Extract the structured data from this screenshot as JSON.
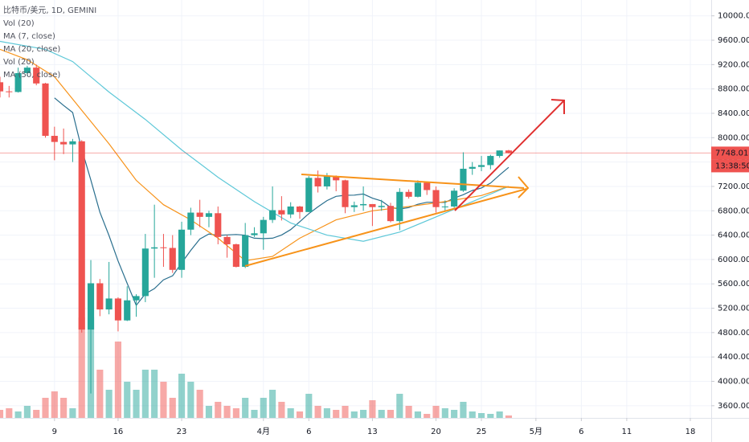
{
  "chart_data": {
    "type": "candlestick",
    "title": "比特币/美元, 1D, GEMINI",
    "legend": [
      "Vol (20)",
      "MA (7, close)",
      "MA (20, close)",
      "Vol (20)",
      "MA (50, close)"
    ],
    "x": [
      3,
      4,
      5,
      6,
      7,
      8,
      9,
      10,
      11,
      12,
      13,
      14,
      15,
      16,
      17,
      18,
      19,
      20,
      21,
      22,
      23,
      24,
      25,
      26,
      27,
      28,
      29,
      30,
      31,
      32,
      33,
      34,
      35,
      36,
      37,
      38,
      39,
      40,
      41,
      42,
      43,
      44,
      45,
      46,
      47,
      48,
      49,
      50,
      51,
      52,
      53,
      54,
      55,
      56,
      57,
      58,
      59
    ],
    "open": [
      8910,
      8760,
      8750,
      9060,
      9150,
      8890,
      8030,
      7930,
      7890,
      7940,
      4850,
      5610,
      5180,
      5360,
      5000,
      5330,
      5400,
      6180,
      6200,
      6190,
      5830,
      6490,
      6770,
      6700,
      6760,
      6370,
      6250,
      5880,
      6400,
      6430,
      6650,
      6810,
      6740,
      6870,
      6780,
      7340,
      7200,
      7370,
      7300,
      6860,
      6890,
      6910,
      6860,
      6880,
      6630,
      7110,
      7030,
      7260,
      7140,
      6860,
      6870,
      7130,
      7490,
      7520,
      7550,
      7700,
      7790
    ],
    "high": [
      9000,
      8850,
      9150,
      9180,
      9200,
      8900,
      8180,
      8150,
      7980,
      7960,
      5990,
      5680,
      5960,
      5380,
      5560,
      5430,
      6420,
      6900,
      6420,
      6400,
      6620,
      6850,
      6980,
      6800,
      6870,
      6400,
      6260,
      6600,
      6530,
      6700,
      7200,
      7040,
      6940,
      6880,
      7370,
      7460,
      7420,
      7380,
      7310,
      6950,
      7200,
      6910,
      6980,
      6930,
      7170,
      7150,
      7300,
      7270,
      7200,
      6970,
      7170,
      7760,
      7600,
      7700,
      7720,
      7790,
      7800
    ],
    "low": [
      8660,
      8660,
      8740,
      9010,
      8860,
      8000,
      7630,
      7730,
      7600,
      4800,
      3800,
      5070,
      5100,
      4820,
      4990,
      5060,
      5300,
      5700,
      5880,
      5780,
      5700,
      6400,
      6530,
      6530,
      6250,
      6030,
      5870,
      5860,
      6370,
      6160,
      6600,
      6640,
      6680,
      6670,
      6780,
      7100,
      7150,
      7120,
      6760,
      6780,
      6800,
      6550,
      6800,
      6610,
      6480,
      7000,
      7020,
      7060,
      6770,
      6800,
      6850,
      7110,
      7390,
      7450,
      7480,
      7670,
      7740
    ],
    "close": [
      8760,
      8750,
      9060,
      9150,
      8890,
      8030,
      7930,
      7890,
      7940,
      4850,
      5610,
      5180,
      5360,
      5000,
      5330,
      5400,
      6180,
      6200,
      6190,
      5830,
      6490,
      6770,
      6700,
      6760,
      6370,
      6250,
      5880,
      6400,
      6430,
      6650,
      6810,
      6740,
      6870,
      6780,
      7340,
      7200,
      7370,
      7300,
      6860,
      6890,
      6910,
      6860,
      6880,
      6630,
      7110,
      7030,
      7260,
      7140,
      6860,
      6870,
      7130,
      7490,
      7520,
      7550,
      7700,
      7790,
      7748
    ],
    "volume": [
      10,
      12,
      8,
      15,
      10,
      25,
      33,
      25,
      12,
      125,
      125,
      60,
      35,
      95,
      45,
      35,
      60,
      60,
      45,
      25,
      55,
      45,
      35,
      15,
      20,
      15,
      12,
      25,
      10,
      25,
      35,
      20,
      12,
      8,
      30,
      15,
      12,
      10,
      15,
      8,
      10,
      22,
      10,
      10,
      30,
      15,
      8,
      5,
      15,
      12,
      10,
      20,
      8,
      6,
      5,
      8,
      3
    ],
    "vollim": [
      0,
      520
    ],
    "up_color": "#26a69a",
    "down_color": "#ef5350",
    "ma_series": [
      {
        "color": "#2a6f8e",
        "x": [
          9,
          10,
          11,
          12,
          13,
          14,
          15,
          16,
          17,
          18,
          19,
          20,
          21,
          22,
          23,
          24,
          25,
          26,
          27,
          28,
          29,
          30,
          31,
          32,
          33,
          34,
          35,
          36,
          37,
          38,
          39,
          40,
          41,
          42,
          43,
          44,
          45,
          46,
          47,
          48,
          49,
          50,
          51,
          52,
          53,
          54,
          55,
          56,
          57,
          58,
          59
        ],
        "values": [
          8653,
          8529,
          8413,
          7811,
          7306,
          6776,
          6394,
          5976,
          5610,
          5247,
          5437,
          5521,
          5666,
          5733,
          5946,
          6151,
          6337,
          6420,
          6396,
          6404,
          6411,
          6399,
          6350,
          6343,
          6350,
          6403,
          6491,
          6620,
          6754,
          6864,
          6967,
          7037,
          7054,
          7057,
          7076,
          7007,
          6961,
          6856,
          6829,
          6853,
          6906,
          6939,
          6939,
          6937,
          7009,
          7063,
          7133,
          7174,
          7254,
          7387,
          7513
        ]
      },
      {
        "color": "#f7931a",
        "x": [
          3,
          6,
          9,
          12,
          15,
          18,
          21,
          24,
          27,
          30,
          33,
          36,
          40,
          44,
          48,
          52,
          56,
          59
        ],
        "values": [
          9450,
          9280,
          9000,
          8450,
          7900,
          7300,
          6900,
          6650,
          6350,
          5980,
          6050,
          6350,
          6650,
          6800,
          6870,
          6950,
          7050,
          7200
        ]
      },
      {
        "color": "#5ec8d8",
        "x": [
          3,
          8,
          11,
          15,
          19,
          23,
          27,
          31,
          35,
          39,
          43,
          47,
          51,
          55,
          59
        ],
        "values": [
          9580,
          9450,
          9250,
          8750,
          8300,
          7800,
          7350,
          6950,
          6600,
          6400,
          6300,
          6450,
          6700,
          6950,
          7200
        ]
      }
    ],
    "xlim": [
      3,
      81.3
    ],
    "ylim": [
      3400,
      10260
    ],
    "xticks": [
      9,
      16,
      23,
      {
        "value": 32,
        "label": "4月"
      },
      {
        "value": 37,
        "label": "6"
      },
      {
        "value": 44,
        "label": "13"
      },
      {
        "value": 51,
        "label": "20"
      },
      {
        "value": 56,
        "label": "25"
      },
      {
        "value": 62,
        "label": "5月"
      },
      {
        "value": 67,
        "label": "6"
      },
      {
        "value": 72,
        "label": "11"
      },
      {
        "value": 79,
        "label": "18"
      }
    ],
    "yticks": [
      {
        "value": 3600,
        "label": "3600.00"
      },
      {
        "value": 4000,
        "label": "4000.00"
      },
      {
        "value": 4400,
        "label": "4400.00"
      },
      {
        "value": 4800,
        "label": "4800.00"
      },
      {
        "value": 5200,
        "label": "5200.00"
      },
      {
        "value": 5600,
        "label": "5600.00"
      },
      {
        "value": 6000,
        "label": "6000.00"
      },
      {
        "value": 6400,
        "label": "6400.00"
      },
      {
        "value": 6800,
        "label": "6800.00"
      },
      {
        "value": 7200,
        "label": "7200.00"
      },
      {
        "value": 7600,
        "label": "7600.00"
      },
      {
        "value": 8000,
        "label": "8000.00"
      },
      {
        "value": 8400,
        "label": "8400.00"
      },
      {
        "value": 8800,
        "label": "8800.00"
      },
      {
        "value": 9200,
        "label": "9200.00"
      },
      {
        "value": 9600,
        "label": "9600.00"
      },
      {
        "value": 10000,
        "label": "10000.00"
      }
    ],
    "grid": true,
    "last_price": {
      "value": 7748.01,
      "label": "7748.01"
    },
    "countdown": "13:38:50"
  }
}
